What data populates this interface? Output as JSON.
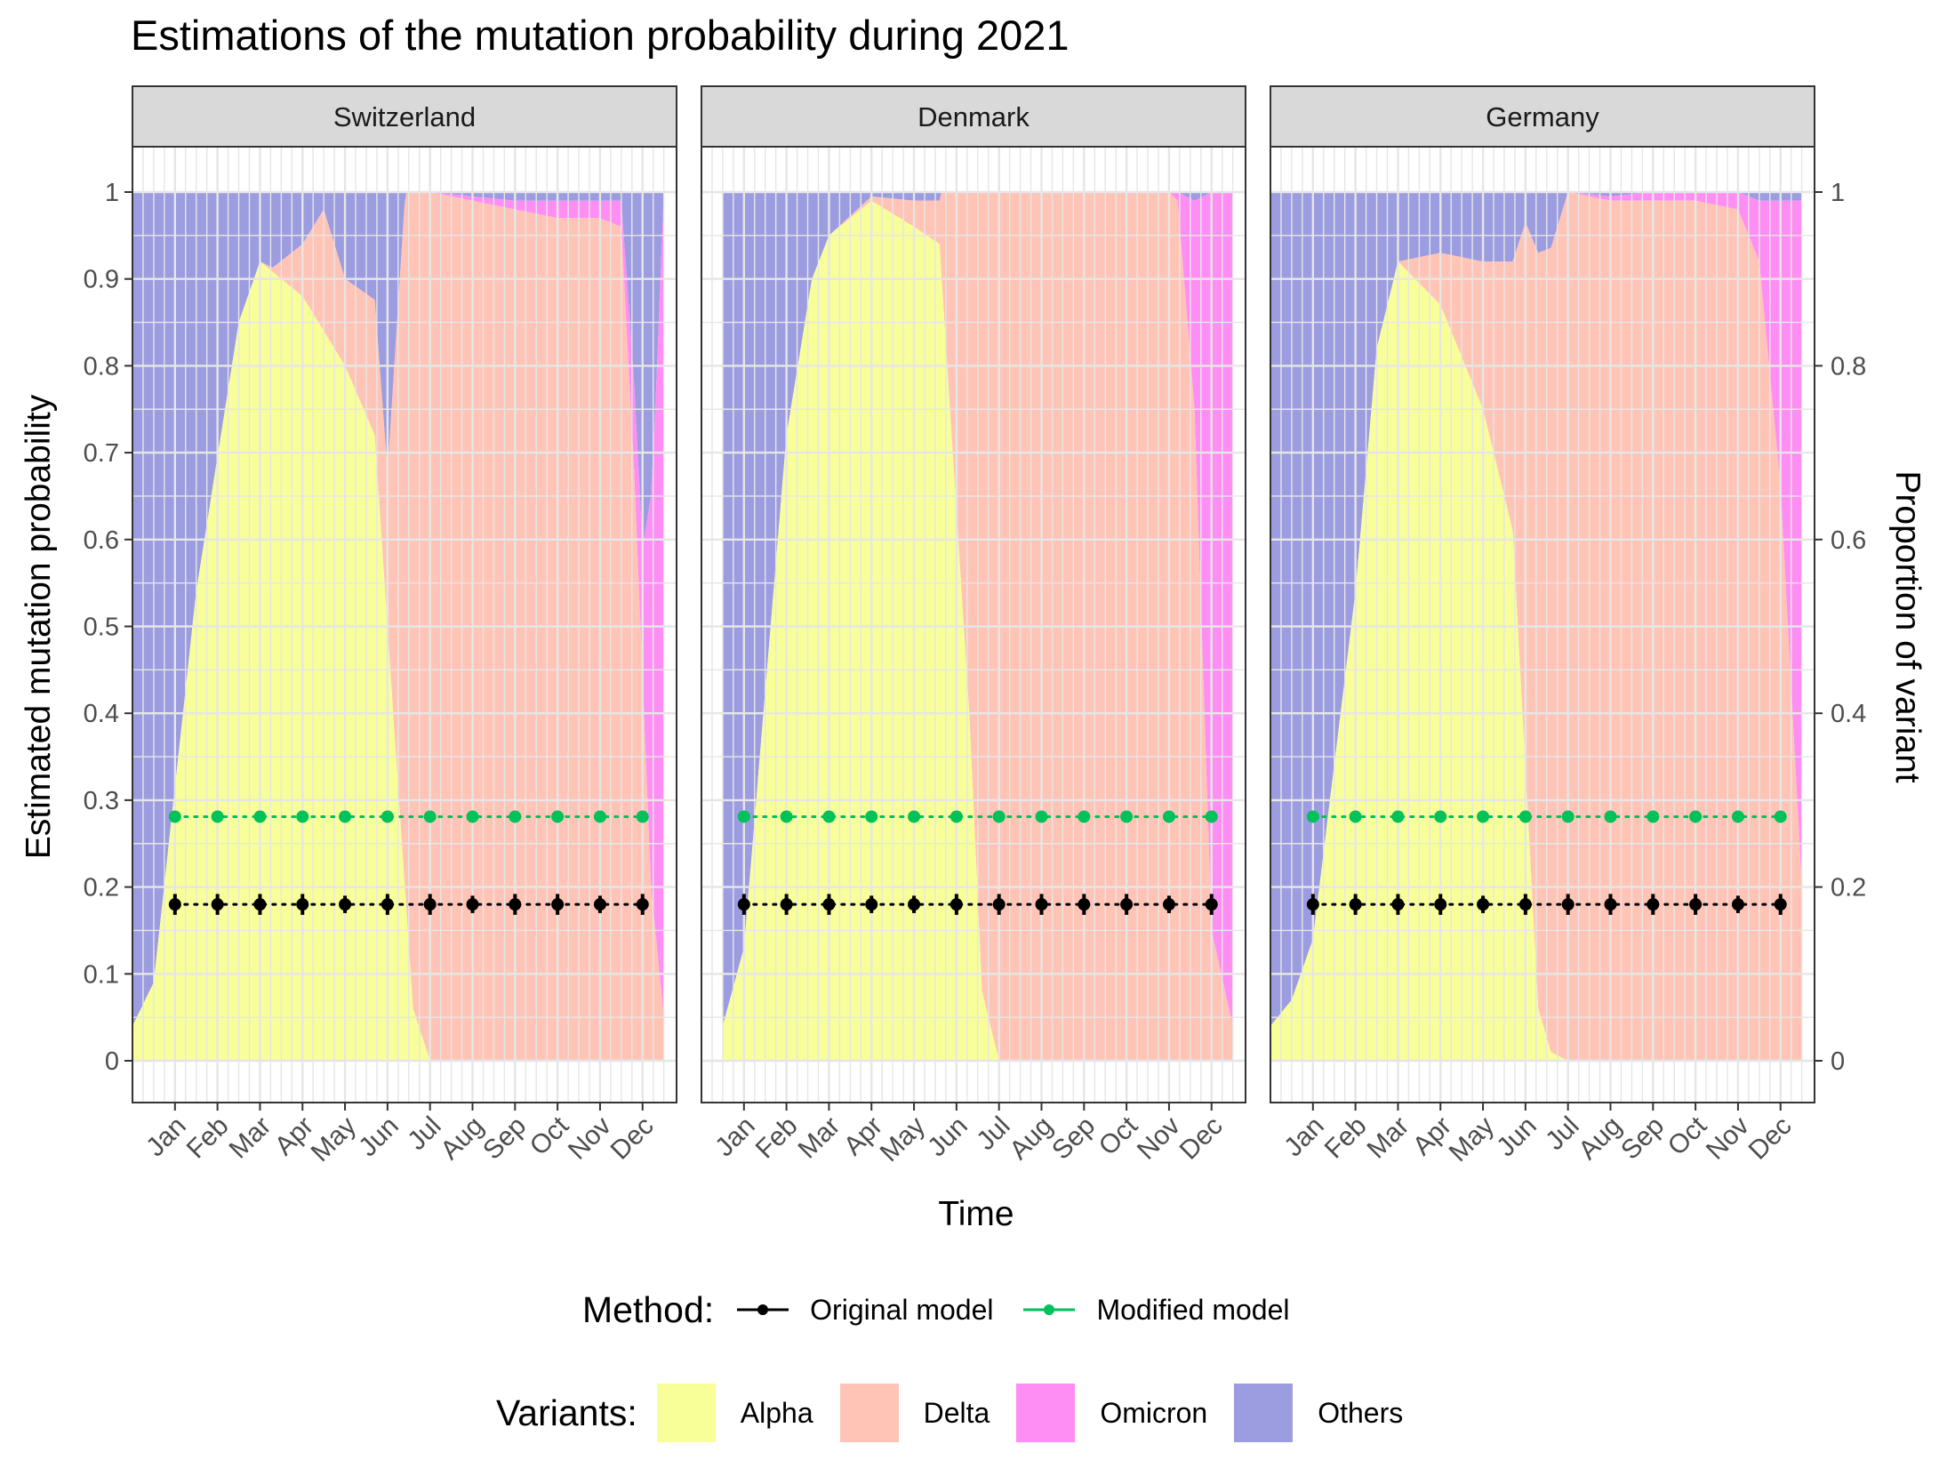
{
  "title": "Estimations of the mutation probability during 2021",
  "chart_data": {
    "type": "area",
    "title": "Estimations of the mutation probability during 2021",
    "xlabel": "Time",
    "ylabel": "Estimated mutation probability",
    "y2label": "Proportion of variant",
    "ylim": [
      0,
      1
    ],
    "yticks": [
      "0",
      "0.1",
      "0.2",
      "0.3",
      "0.4",
      "0.5",
      "0.6",
      "0.7",
      "0.8",
      "0.9",
      "1"
    ],
    "y2ticks": [
      "0",
      "0.2",
      "0.4",
      "0.6",
      "0.8",
      "1"
    ],
    "months": [
      "Jan",
      "Feb",
      "Mar",
      "Apr",
      "May",
      "Jun",
      "Jul",
      "Aug",
      "Sep",
      "Oct",
      "Nov",
      "Dec"
    ],
    "grid": true,
    "legend_position": "bottom",
    "colors": {
      "Alpha": "#f8ff98",
      "Delta": "#ffc4b6",
      "Omicron": "#ff8ef4",
      "Others": "#9c9ce0",
      "Original model": "#000000",
      "Modified model": "#00c15a",
      "strip": "#d9d9d9",
      "grid": "#e6e6e6"
    },
    "facets": [
      {
        "name": "Switzerland",
        "alpha": [
          [
            -1,
            0.04
          ],
          [
            -0.5,
            0.09
          ],
          [
            0.5,
            0.54
          ],
          [
            1.5,
            0.85
          ],
          [
            2,
            0.92
          ],
          [
            3,
            0.88
          ],
          [
            4,
            0.8
          ],
          [
            4.7,
            0.72
          ],
          [
            5.2,
            0.35
          ],
          [
            5.6,
            0.06
          ],
          [
            6,
            0
          ],
          [
            11.5,
            0
          ]
        ],
        "delta": [
          [
            -1,
            0
          ],
          [
            1.2,
            0
          ],
          [
            2,
            0
          ],
          [
            2.3,
            0.005
          ],
          [
            3,
            0.06
          ],
          [
            3.5,
            0.14
          ],
          [
            4,
            0.1
          ],
          [
            5,
            0.18
          ],
          [
            5.5,
            0.93
          ],
          [
            6,
            1
          ],
          [
            7,
            0.99
          ],
          [
            8,
            0.98
          ],
          [
            9,
            0.97
          ],
          [
            10,
            0.97
          ],
          [
            10.5,
            0.96
          ],
          [
            10.8,
            0.68
          ],
          [
            11.2,
            0.2
          ],
          [
            11.5,
            0.05
          ]
        ],
        "omicron": [
          [
            -1,
            0
          ],
          [
            6,
            0
          ],
          [
            7,
            0.005
          ],
          [
            8,
            0.01
          ],
          [
            9,
            0.02
          ],
          [
            10,
            0.02
          ],
          [
            10.5,
            0.03
          ],
          [
            11,
            0.15
          ],
          [
            11.3,
            0.6
          ],
          [
            11.5,
            0.95
          ]
        ],
        "original": [
          0.18,
          0.18,
          0.18,
          0.18,
          0.18,
          0.18,
          0.18,
          0.18,
          0.18,
          0.18,
          0.18,
          0.18
        ],
        "original_err": [
          0.012,
          0.012,
          0.012,
          0.012,
          0.01,
          0.012,
          0.012,
          0.01,
          0.012,
          0.012,
          0.01,
          0.012
        ],
        "modified": [
          0.281,
          0.281,
          0.281,
          0.281,
          0.281,
          0.281,
          0.281,
          0.281,
          0.281,
          0.281,
          0.281,
          0.281
        ]
      },
      {
        "name": "Denmark",
        "alpha": [
          [
            -0.5,
            0.04
          ],
          [
            0,
            0.13
          ],
          [
            1,
            0.72
          ],
          [
            1.6,
            0.9
          ],
          [
            2,
            0.95
          ],
          [
            3,
            0.99
          ],
          [
            4,
            0.96
          ],
          [
            4.6,
            0.94
          ],
          [
            5.3,
            0.4
          ],
          [
            5.6,
            0.08
          ],
          [
            6,
            0
          ],
          [
            11.5,
            0
          ]
        ],
        "delta": [
          [
            -0.5,
            0
          ],
          [
            2,
            0
          ],
          [
            3,
            0.005
          ],
          [
            4,
            0.03
          ],
          [
            4.6,
            0.05
          ],
          [
            5,
            0.58
          ],
          [
            5.6,
            0.92
          ],
          [
            6,
            1
          ],
          [
            7,
            1
          ],
          [
            8,
            1
          ],
          [
            9,
            1
          ],
          [
            10,
            1
          ],
          [
            10.2,
            0.99
          ],
          [
            10.6,
            0.75
          ],
          [
            11,
            0.15
          ],
          [
            11.5,
            0.04
          ]
        ],
        "omicron": [
          [
            -0.5,
            0
          ],
          [
            9,
            0
          ],
          [
            10,
            0.005
          ],
          [
            10.2,
            0.01
          ],
          [
            10.6,
            0.24
          ],
          [
            11,
            0.85
          ],
          [
            11.5,
            0.96
          ]
        ],
        "original": [
          0.18,
          0.18,
          0.18,
          0.18,
          0.18,
          0.18,
          0.18,
          0.18,
          0.18,
          0.18,
          0.18,
          0.18
        ],
        "original_err": [
          0.012,
          0.012,
          0.012,
          0.01,
          0.01,
          0.012,
          0.012,
          0.012,
          0.012,
          0.012,
          0.01,
          0.012
        ],
        "modified": [
          0.281,
          0.281,
          0.281,
          0.281,
          0.281,
          0.281,
          0.281,
          0.281,
          0.281,
          0.281,
          0.281,
          0.281
        ]
      },
      {
        "name": "Germany",
        "alpha": [
          [
            -1,
            0.04
          ],
          [
            -0.5,
            0.07
          ],
          [
            0,
            0.14
          ],
          [
            1,
            0.54
          ],
          [
            1.5,
            0.82
          ],
          [
            2,
            0.92
          ],
          [
            3,
            0.87
          ],
          [
            4,
            0.75
          ],
          [
            4.7,
            0.61
          ],
          [
            5.3,
            0.06
          ],
          [
            5.6,
            0.01
          ],
          [
            6,
            0
          ],
          [
            11.5,
            0
          ]
        ],
        "delta": [
          [
            -1,
            0
          ],
          [
            1.5,
            0
          ],
          [
            2,
            0
          ],
          [
            3,
            0.06
          ],
          [
            4,
            0.17
          ],
          [
            4.7,
            0.31
          ],
          [
            5,
            0.63
          ],
          [
            5.3,
            0.87
          ],
          [
            6,
            1
          ],
          [
            7,
            0.99
          ],
          [
            8,
            0.99
          ],
          [
            9,
            0.99
          ],
          [
            10,
            0.98
          ],
          [
            10.5,
            0.92
          ],
          [
            11,
            0.66
          ],
          [
            11.5,
            0.2
          ]
        ],
        "omicron": [
          [
            -1,
            0
          ],
          [
            6,
            0
          ],
          [
            7,
            0.005
          ],
          [
            8,
            0.01
          ],
          [
            9,
            0.01
          ],
          [
            10,
            0.02
          ],
          [
            10.5,
            0.07
          ],
          [
            11,
            0.33
          ],
          [
            11.5,
            0.79
          ]
        ],
        "original": [
          0.18,
          0.18,
          0.18,
          0.18,
          0.18,
          0.18,
          0.18,
          0.18,
          0.18,
          0.18,
          0.18,
          0.18
        ],
        "original_err": [
          0.012,
          0.012,
          0.012,
          0.012,
          0.01,
          0.012,
          0.012,
          0.012,
          0.012,
          0.012,
          0.01,
          0.012
        ],
        "modified": [
          0.281,
          0.281,
          0.281,
          0.281,
          0.281,
          0.281,
          0.281,
          0.281,
          0.281,
          0.281,
          0.281,
          0.281
        ]
      }
    ]
  },
  "legend_method": {
    "title": "Method:",
    "items": [
      {
        "label": "Original model",
        "color": "#000000"
      },
      {
        "label": "Modified model",
        "color": "#00c15a"
      }
    ]
  },
  "legend_variants": {
    "title": "Variants:",
    "items": [
      {
        "label": "Alpha",
        "color": "#f8ff98"
      },
      {
        "label": "Delta",
        "color": "#ffc4b6"
      },
      {
        "label": "Omicron",
        "color": "#ff8ef4"
      },
      {
        "label": "Others",
        "color": "#9c9ce0"
      }
    ]
  }
}
